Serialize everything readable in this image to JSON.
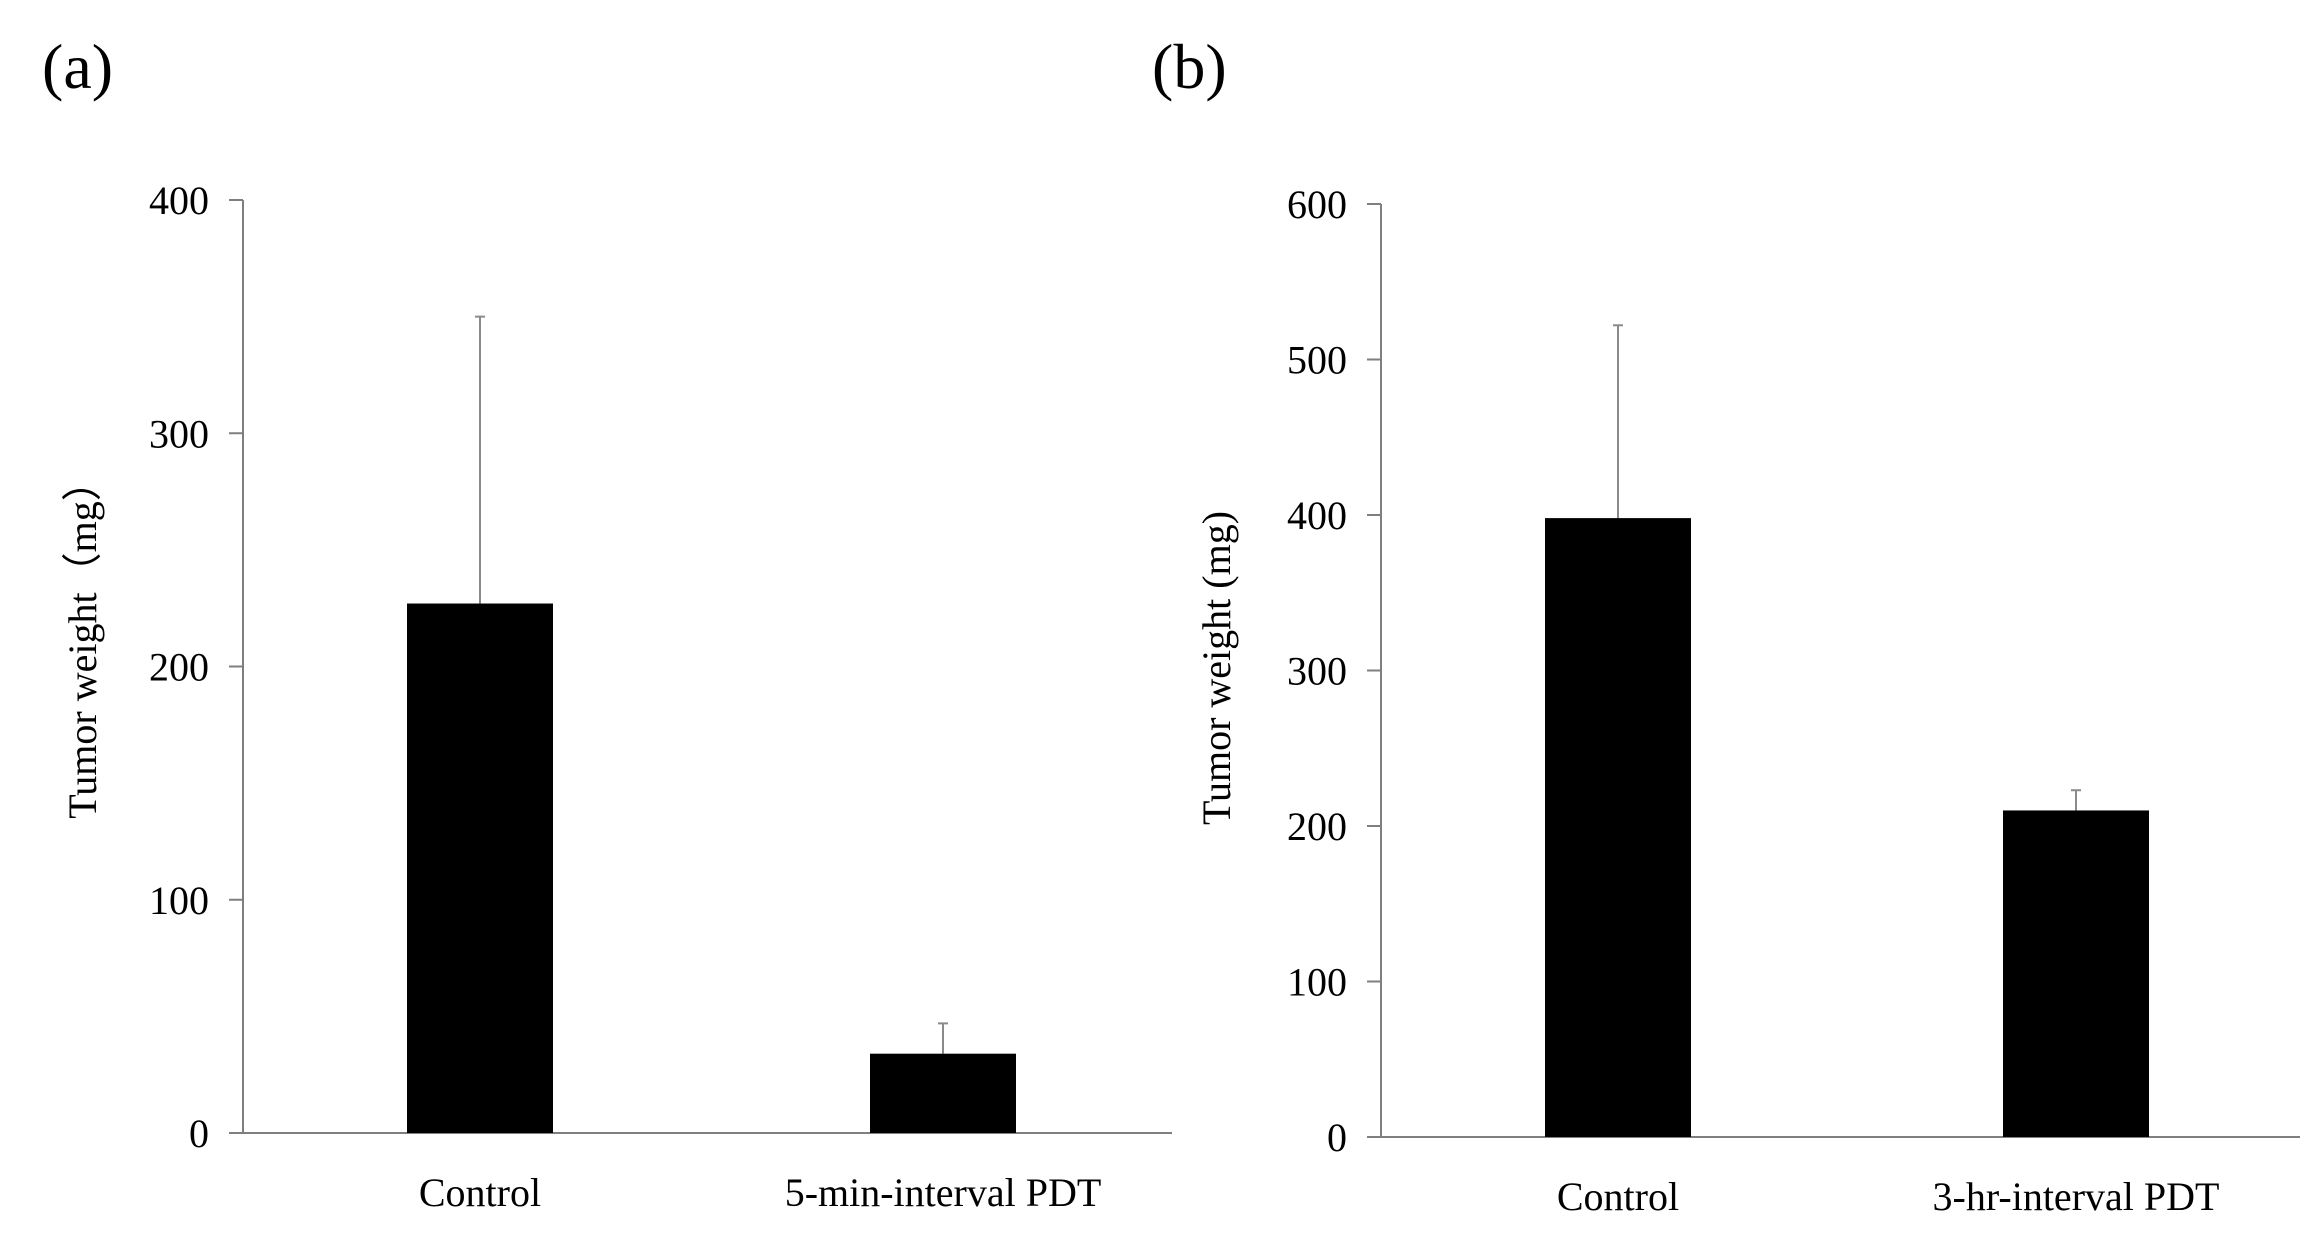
{
  "chart_data": [
    {
      "panel_label": "(a)",
      "type": "bar",
      "title": "",
      "xlabel": "",
      "ylabel": "Tumor weight（mg）",
      "ylim": [
        0,
        400
      ],
      "yticks": [
        0,
        100,
        200,
        300,
        400
      ],
      "grid": false,
      "categories": [
        "Control",
        "5-min-interval PDT"
      ],
      "values": [
        227,
        34
      ],
      "error_upper": [
        123,
        13
      ],
      "bar_color": "#000000"
    },
    {
      "panel_label": "(b)",
      "type": "bar",
      "title": "",
      "xlabel": "",
      "ylabel": "Tumor weight (mg)",
      "ylim": [
        0,
        600
      ],
      "yticks": [
        0,
        100,
        200,
        300,
        400,
        500,
        600
      ],
      "grid": false,
      "categories": [
        "Control",
        "3-hr-interval PDT"
      ],
      "values": [
        398,
        210
      ],
      "error_upper": [
        124,
        13
      ],
      "bar_color": "#000000"
    }
  ]
}
